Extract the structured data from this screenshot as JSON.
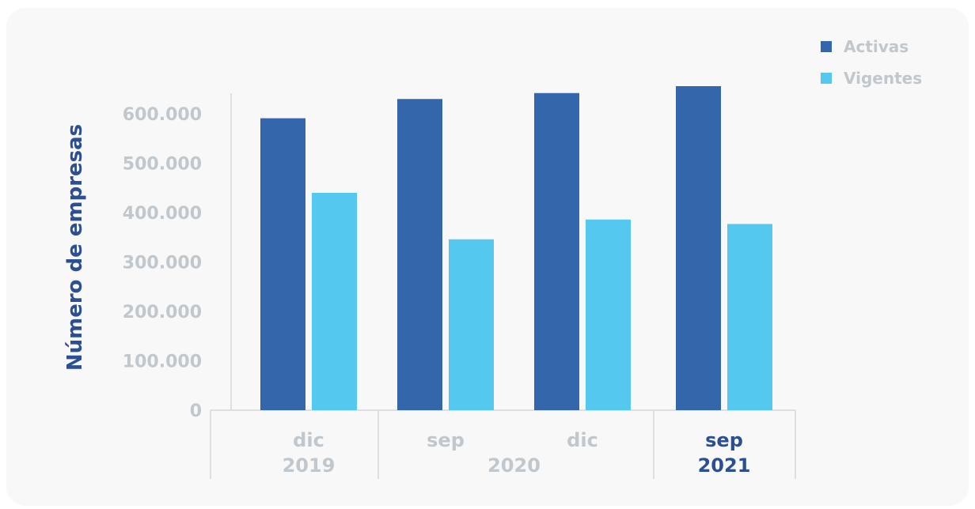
{
  "chart_data": {
    "type": "bar",
    "ylabel": "Número de empresas",
    "ylim": [
      0,
      650000
    ],
    "yticks": [
      "0",
      "100.000",
      "200.000",
      "300.000",
      "400.000",
      "500.000",
      "600.000"
    ],
    "ytick_values": [
      0,
      100000,
      200000,
      300000,
      400000,
      500000,
      600000
    ],
    "categories": [
      {
        "month": "dic",
        "year": "2019",
        "highlight": false
      },
      {
        "month": "sep",
        "year": "2020",
        "highlight": false
      },
      {
        "month": "dic",
        "year": "2020",
        "highlight": false
      },
      {
        "month": "sep",
        "year": "2021",
        "highlight": true
      }
    ],
    "year_groups": [
      {
        "label": "2019",
        "from": 0,
        "to": 0,
        "highlight": false
      },
      {
        "label": "2020",
        "from": 1,
        "to": 2,
        "highlight": false
      },
      {
        "label": "2021",
        "from": 3,
        "to": 3,
        "highlight": true
      }
    ],
    "series": [
      {
        "name": "Activas",
        "color": "#3366aa",
        "values": [
          591000,
          630000,
          642000,
          656000
        ]
      },
      {
        "name": "Vigentes",
        "color": "#55c8ef",
        "values": [
          440000,
          346000,
          386000,
          377000
        ]
      }
    ],
    "legend_position": "top-right",
    "grid": false
  }
}
